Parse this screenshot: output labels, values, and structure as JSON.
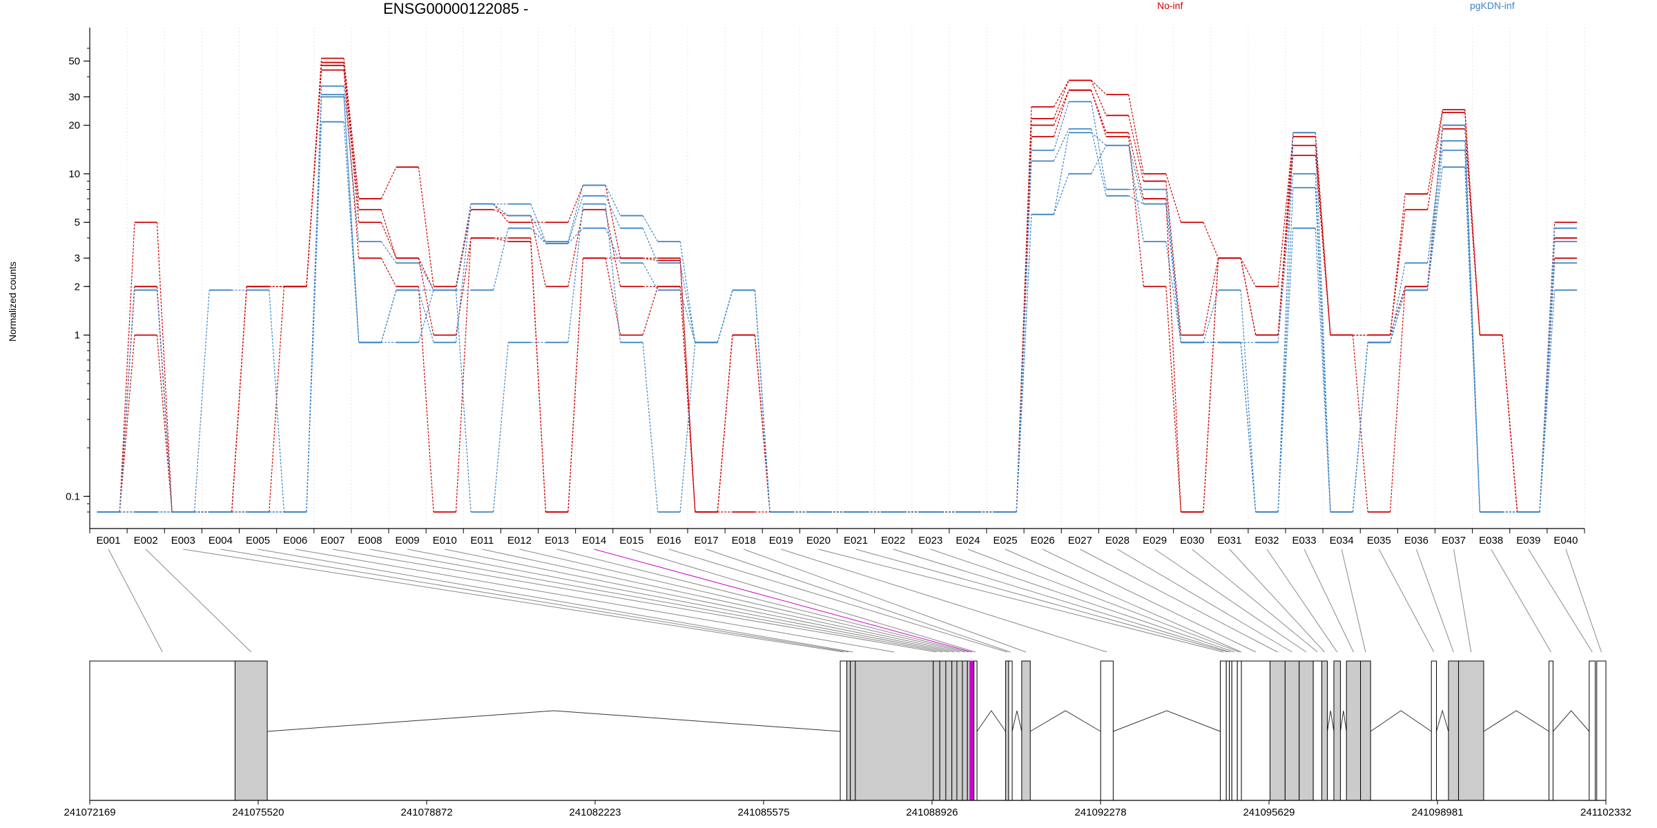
{
  "chart_data": {
    "type": "line",
    "title": "ENSG00000122085 -",
    "ylabel": "Normalized counts",
    "yscale": "log",
    "yticks": [
      0.1,
      1,
      2,
      3,
      5,
      10,
      20,
      30,
      50
    ],
    "ylim": [
      0.08,
      60
    ],
    "grid": "vertical lines at exon boundaries",
    "legend": [
      {
        "label": "No-inf",
        "color": "#cc0000",
        "placement": "top-center"
      },
      {
        "label": "pgKDN-inf",
        "color": "#3d85c6",
        "placement": "top-right"
      }
    ],
    "categories": [
      "E001",
      "E002",
      "E003",
      "E004",
      "E005",
      "E006",
      "E007",
      "E008",
      "E009",
      "E010",
      "E011",
      "E012",
      "E013",
      "E014",
      "E015",
      "E016",
      "E017",
      "E018",
      "E019",
      "E020",
      "E021",
      "E022",
      "E023",
      "E024",
      "E025",
      "E026",
      "E027",
      "E028",
      "E029",
      "E030",
      "E031",
      "E032",
      "E033",
      "E034",
      "E035",
      "E036",
      "E037",
      "E038",
      "E039",
      "E040"
    ],
    "series": [
      {
        "group": "No-inf",
        "color": "#cc0000",
        "values": [
          0.08,
          5,
          0.08,
          0.08,
          2,
          2,
          52,
          7,
          11,
          2,
          6.5,
          5,
          5,
          8.5,
          3,
          3,
          0.08,
          1,
          0.08,
          0.08,
          0.08,
          0.08,
          0.08,
          0.08,
          0.08,
          26,
          38,
          31,
          10,
          5,
          3,
          2,
          17,
          1,
          1,
          7.5,
          25,
          1,
          0.08,
          5
        ]
      },
      {
        "group": "No-inf",
        "color": "#cc0000",
        "values": [
          0.08,
          2,
          0.08,
          0.08,
          2,
          2,
          49,
          6,
          3,
          1.9,
          6,
          5.5,
          2,
          6,
          2,
          2,
          0.08,
          1,
          0.08,
          0.08,
          0.08,
          0.08,
          0.08,
          0.08,
          0.08,
          22,
          38,
          23,
          9,
          1,
          3,
          1,
          15,
          1,
          1,
          6,
          24,
          1,
          0.08,
          4
        ]
      },
      {
        "group": "No-inf",
        "color": "#cc0000",
        "values": [
          0.08,
          1,
          0.08,
          0.08,
          0.08,
          2,
          47,
          5,
          3,
          1,
          4,
          4,
          0.08,
          3,
          3,
          2.9,
          0.08,
          0.08,
          0.08,
          0.08,
          0.08,
          0.08,
          0.08,
          0.08,
          0.08,
          20,
          33,
          18,
          7,
          0.08,
          3,
          1,
          13,
          1,
          0.08,
          2,
          20,
          1,
          0.08,
          4
        ]
      },
      {
        "group": "No-inf",
        "color": "#cc0000",
        "values": [
          0.08,
          2,
          0.08,
          0.08,
          2,
          2,
          44,
          3,
          2,
          0.08,
          4,
          3.8,
          0.08,
          3,
          1,
          2,
          0.08,
          1,
          0.08,
          0.08,
          0.08,
          0.08,
          0.08,
          0.08,
          0.08,
          17,
          33,
          17,
          2,
          0.08,
          3,
          1,
          18,
          1,
          1,
          2,
          19,
          1,
          0.08,
          3
        ]
      },
      {
        "group": "pgKDN-inf",
        "color": "#3d85c6",
        "values": [
          0.08,
          1.9,
          0.08,
          1.9,
          1.9,
          0.08,
          35,
          3.8,
          2.8,
          1.9,
          6.5,
          6.5,
          3.8,
          8.5,
          5.5,
          3.8,
          0.9,
          1.9,
          0.08,
          0.08,
          0.08,
          0.08,
          0.08,
          0.08,
          0.08,
          14,
          28,
          8,
          8,
          0.9,
          0.9,
          0.9,
          10,
          0.08,
          0.9,
          2.8,
          16,
          0.08,
          0.08,
          4.6
        ]
      },
      {
        "group": "pgKDN-inf",
        "color": "#3d85c6",
        "values": [
          0.08,
          0.08,
          0.08,
          0.08,
          0.08,
          0.08,
          31,
          0.9,
          1.9,
          0.9,
          6.5,
          5.5,
          3.7,
          7.3,
          4.6,
          2.8,
          0.9,
          1.9,
          0.08,
          0.08,
          0.08,
          0.08,
          0.08,
          0.08,
          0.08,
          12,
          19,
          7.3,
          6.5,
          0.9,
          1.9,
          0.08,
          8.2,
          0.08,
          0.9,
          1.9,
          14,
          0.08,
          0.08,
          3.8
        ]
      },
      {
        "group": "pgKDN-inf",
        "color": "#3d85c6",
        "values": [
          0.08,
          0.08,
          0.08,
          0.08,
          0.08,
          0.08,
          30,
          0.9,
          0.9,
          1.9,
          1.9,
          4.6,
          3.7,
          4.6,
          2.8,
          1.9,
          0.9,
          1.9,
          0.08,
          0.08,
          0.08,
          0.08,
          0.08,
          0.08,
          0.08,
          5.6,
          18,
          15,
          3.8,
          0.9,
          0.9,
          0.08,
          4.6,
          0.08,
          0.9,
          1.9,
          11,
          0.08,
          0.08,
          2.8
        ]
      },
      {
        "group": "pgKDN-inf",
        "color": "#3d85c6",
        "values": [
          0.08,
          0.08,
          0.08,
          0.08,
          0.08,
          0.08,
          21,
          0.9,
          1.9,
          1.9,
          0.08,
          0.9,
          0.9,
          6.5,
          0.9,
          0.08,
          0.9,
          1.9,
          0.08,
          0.08,
          0.08,
          0.08,
          0.08,
          0.08,
          0.08,
          5.6,
          10,
          15,
          6.5,
          0.9,
          0.9,
          0.08,
          18,
          0.08,
          0.9,
          1.9,
          20,
          0.08,
          0.08,
          1.9
        ]
      }
    ],
    "gene_model": {
      "coordinate_ticks": [
        "241072169",
        "241075520",
        "241078872",
        "241082223",
        "241085575",
        "241088926",
        "241092278",
        "241095629",
        "241098981",
        "241102332"
      ],
      "coordinate_tick_values": [
        241072169,
        241075520,
        241078872,
        241082223,
        241085575,
        241088926,
        241092278,
        241095629,
        241098981,
        241102332
      ],
      "highlight_exon": "E014",
      "highlight_color": "#cc00cc",
      "exon_fill_color": "#cccccc",
      "exons": [
        {
          "id": "E001",
          "start": 241072169,
          "end": 241075060,
          "filled": false
        },
        {
          "id": "E002",
          "start": 241075060,
          "end": 241075700,
          "filled": true
        },
        {
          "id": "E003",
          "start": 241087100,
          "end": 241087230,
          "filled": false
        },
        {
          "id": "E004",
          "start": 241087230,
          "end": 241087300,
          "filled": true
        },
        {
          "id": "E005",
          "start": 241087300,
          "end": 241087400,
          "filled": true
        },
        {
          "id": "E006",
          "start": 241087400,
          "end": 241088950,
          "filled": true
        },
        {
          "id": "E007",
          "start": 241088950,
          "end": 241089080,
          "filled": true
        },
        {
          "id": "E008",
          "start": 241089080,
          "end": 241089200,
          "filled": true
        },
        {
          "id": "E009",
          "start": 241089200,
          "end": 241089320,
          "filled": true
        },
        {
          "id": "E010",
          "start": 241089320,
          "end": 241089420,
          "filled": true
        },
        {
          "id": "E011",
          "start": 241089420,
          "end": 241089530,
          "filled": true
        },
        {
          "id": "E012",
          "start": 241089530,
          "end": 241089630,
          "filled": true
        },
        {
          "id": "E013",
          "start": 241089630,
          "end": 241089680,
          "filled": true
        },
        {
          "id": "E014",
          "start": 241089680,
          "end": 241089760,
          "filled": true
        },
        {
          "id": "E015",
          "start": 241089760,
          "end": 241089820,
          "filled": false
        },
        {
          "id": "E016",
          "start": 241090390,
          "end": 241090450,
          "filled": true
        },
        {
          "id": "E017",
          "start": 241090450,
          "end": 241090520,
          "filled": false
        },
        {
          "id": "E018",
          "start": 241090710,
          "end": 241090880,
          "filled": true
        },
        {
          "id": "E019",
          "start": 241092280,
          "end": 241092530,
          "filled": false
        },
        {
          "id": "E020",
          "start": 241094660,
          "end": 241094780,
          "filled": false
        },
        {
          "id": "E021",
          "start": 241094780,
          "end": 241094840,
          "filled": false
        },
        {
          "id": "E022",
          "start": 241094840,
          "end": 241094890,
          "filled": false
        },
        {
          "id": "E023",
          "start": 241094890,
          "end": 241095000,
          "filled": false
        },
        {
          "id": "E024",
          "start": 241095000,
          "end": 241095080,
          "filled": false
        },
        {
          "id": "E025",
          "start": 241095080,
          "end": 241095080,
          "filled": false
        },
        {
          "id": "E026",
          "start": 241095080,
          "end": 241095650,
          "filled": false
        },
        {
          "id": "E027",
          "start": 241095650,
          "end": 241095950,
          "filled": true
        },
        {
          "id": "E028",
          "start": 241095950,
          "end": 241096230,
          "filled": true
        },
        {
          "id": "E029",
          "start": 241096230,
          "end": 241096510,
          "filled": true
        },
        {
          "id": "E030",
          "start": 241096510,
          "end": 241096680,
          "filled": false
        },
        {
          "id": "E031",
          "start": 241096680,
          "end": 241096790,
          "filled": true
        },
        {
          "id": "E032",
          "start": 241096920,
          "end": 241097050,
          "filled": true
        },
        {
          "id": "E033",
          "start": 241097170,
          "end": 241097450,
          "filled": true
        },
        {
          "id": "E034",
          "start": 241097450,
          "end": 241097650,
          "filled": true
        },
        {
          "id": "E035",
          "start": 241098860,
          "end": 241098960,
          "filled": false
        },
        {
          "id": "E036",
          "start": 241099200,
          "end": 241099400,
          "filled": true
        },
        {
          "id": "E037",
          "start": 241099400,
          "end": 241099900,
          "filled": true
        },
        {
          "id": "E038",
          "start": 241101200,
          "end": 241101280,
          "filled": false
        },
        {
          "id": "E039",
          "start": 241102000,
          "end": 241102120,
          "filled": false
        },
        {
          "id": "E040",
          "start": 241102150,
          "end": 241102332,
          "filled": false
        }
      ],
      "introns": [
        [
          241075700,
          241087100
        ],
        [
          241089820,
          241090390
        ],
        [
          241090520,
          241090710
        ],
        [
          241090880,
          241092280
        ],
        [
          241092530,
          241094660
        ],
        [
          241096790,
          241096920
        ],
        [
          241097050,
          241097170
        ],
        [
          241097650,
          241098860
        ],
        [
          241098960,
          241099200
        ],
        [
          241099900,
          241101200
        ],
        [
          241101280,
          241102000
        ]
      ]
    }
  }
}
